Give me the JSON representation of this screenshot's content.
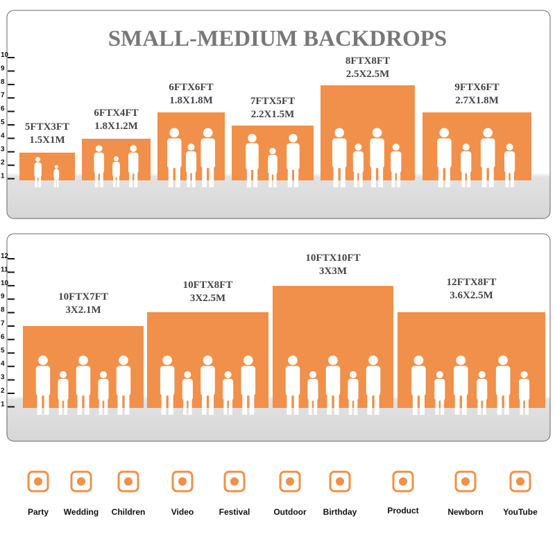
{
  "title": "SMALL-MEDIUM BACKDROPS",
  "panels": [
    {
      "ruler": [
        10,
        9,
        8,
        7,
        6,
        5,
        4,
        3,
        2,
        1
      ],
      "items": [
        {
          "ft": "5FTX3FT",
          "m": "1.5X1M"
        },
        {
          "ft": "6FTX4FT",
          "m": "1.8X1.2M"
        },
        {
          "ft": "6FTX6FT",
          "m": "1.8X1.8M"
        },
        {
          "ft": "7FTX5FT",
          "m": "2.2X1.5M"
        },
        {
          "ft": "8FTX8FT",
          "m": "2.5X2.5M"
        },
        {
          "ft": "9FTX6FT",
          "m": "2.7X1.8M"
        }
      ]
    },
    {
      "ruler": [
        12,
        11,
        10,
        9,
        8,
        7,
        6,
        5,
        4,
        3,
        2,
        1
      ],
      "items": [
        {
          "ft": "10FTX7FT",
          "m": "3X2.1M"
        },
        {
          "ft": "10FTX8FT",
          "m": "3X2.5M"
        },
        {
          "ft": "10FTX10FT",
          "m": "3X3M"
        },
        {
          "ft": "12FTX8FT",
          "m": "3.6X2.5M"
        }
      ]
    }
  ],
  "uses": [
    "Party",
    "Wedding",
    "Children",
    "Video",
    "Festival",
    "Outdoor",
    "Birthday",
    "Product",
    "Newborn",
    "YouTube"
  ]
}
